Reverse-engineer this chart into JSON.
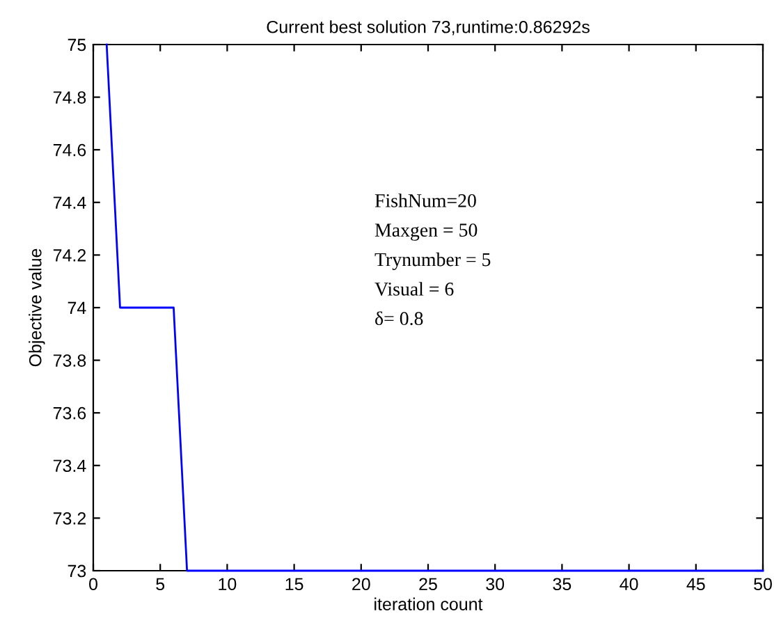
{
  "chart_data": {
    "type": "line",
    "title": "Current best solution 73,runtime:0.86292s",
    "xlabel": "iteration count",
    "ylabel": "Objective value",
    "x": [
      1,
      2,
      6,
      7,
      50
    ],
    "series": [
      {
        "color": "#0000ff",
        "values": [
          75,
          74,
          74,
          73,
          73
        ]
      }
    ],
    "xlim": [
      0,
      50
    ],
    "xticks": [
      0,
      5,
      10,
      15,
      20,
      25,
      30,
      35,
      40,
      45,
      50
    ],
    "ylim": [
      73,
      75
    ],
    "yticks": [
      73,
      73.2,
      73.4,
      73.6,
      73.8,
      74,
      74.2,
      74.4,
      74.6,
      74.8,
      75
    ],
    "grid": false,
    "marker": "none",
    "line_style": "solid",
    "annotations": [
      "FishNum=20",
      "Maxgen = 50",
      "Trynumber = 5",
      "Visual = 6",
      "δ= 0.8"
    ]
  }
}
